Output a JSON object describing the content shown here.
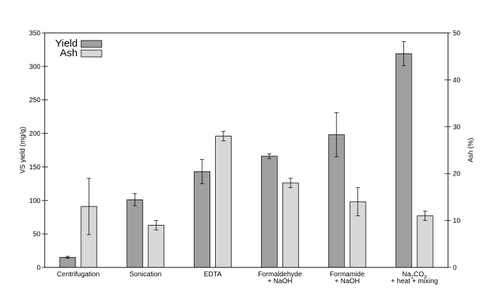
{
  "chart_data": {
    "type": "bar",
    "categories": [
      [
        "Centrifugation"
      ],
      [
        "Sonication"
      ],
      [
        "EDTA"
      ],
      [
        "Formaldehyde",
        "+ NaOH"
      ],
      [
        "Formamide",
        "+ NaOH"
      ],
      [
        "Na2CO3",
        "+ heat + mixing"
      ]
    ],
    "series": [
      {
        "name": "Yield",
        "axis": "left",
        "color": "#a0a0a0",
        "values": [
          15,
          101,
          143,
          166,
          198,
          319
        ],
        "error": [
          1.5,
          9,
          18,
          3.5,
          33,
          18
        ]
      },
      {
        "name": "Ash",
        "axis": "right",
        "color": "#d8d8d8",
        "values": [
          13,
          9,
          28,
          18,
          14,
          11
        ],
        "error": [
          6,
          1,
          1,
          1,
          3,
          1
        ]
      }
    ],
    "ylabel": "VS yield (mg/g)",
    "y2label": "Ash (%)",
    "ylim": [
      0,
      350
    ],
    "y2lim": [
      0,
      50
    ],
    "yticks": [
      "0",
      "50",
      "100",
      "150",
      "200",
      "250",
      "300",
      "350"
    ],
    "y2ticks": [
      "0",
      "10",
      "20",
      "30",
      "40",
      "50"
    ],
    "legend_position": "top-left"
  }
}
